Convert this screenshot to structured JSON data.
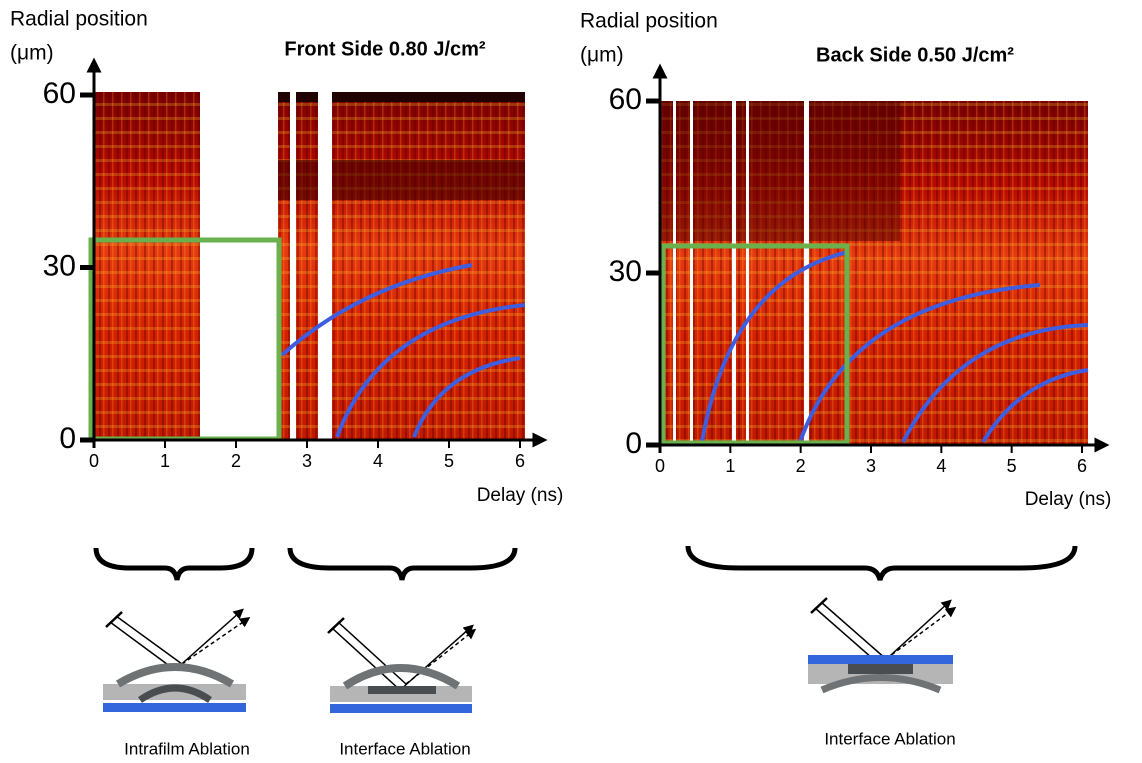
{
  "chart_data": [
    {
      "type": "heatmap",
      "title": "Front Side 0.80 J/cm²",
      "ylabel": [
        "Radial position",
        "(μm)"
      ],
      "xlabel": "Delay (ns)",
      "xlim": [
        0,
        6
      ],
      "ylim": [
        0,
        60
      ],
      "xticks": [
        0,
        1,
        2,
        3,
        4,
        5,
        6
      ],
      "yticks": [
        0,
        30,
        60
      ],
      "annotations": [
        "Intrafilm Ablation",
        "Interface Ablation"
      ]
    },
    {
      "type": "heatmap",
      "title": "Back Side 0.50 J/cm²",
      "ylabel": [
        "Radial position",
        "(μm)"
      ],
      "xlabel": "Delay (ns)",
      "xlim": [
        0,
        6
      ],
      "ylim": [
        0,
        60
      ],
      "xticks": [
        0,
        1,
        2,
        3,
        4,
        5,
        6
      ],
      "yticks": [
        0,
        30,
        60
      ],
      "annotations": [
        "Interface Ablation"
      ]
    }
  ]
}
